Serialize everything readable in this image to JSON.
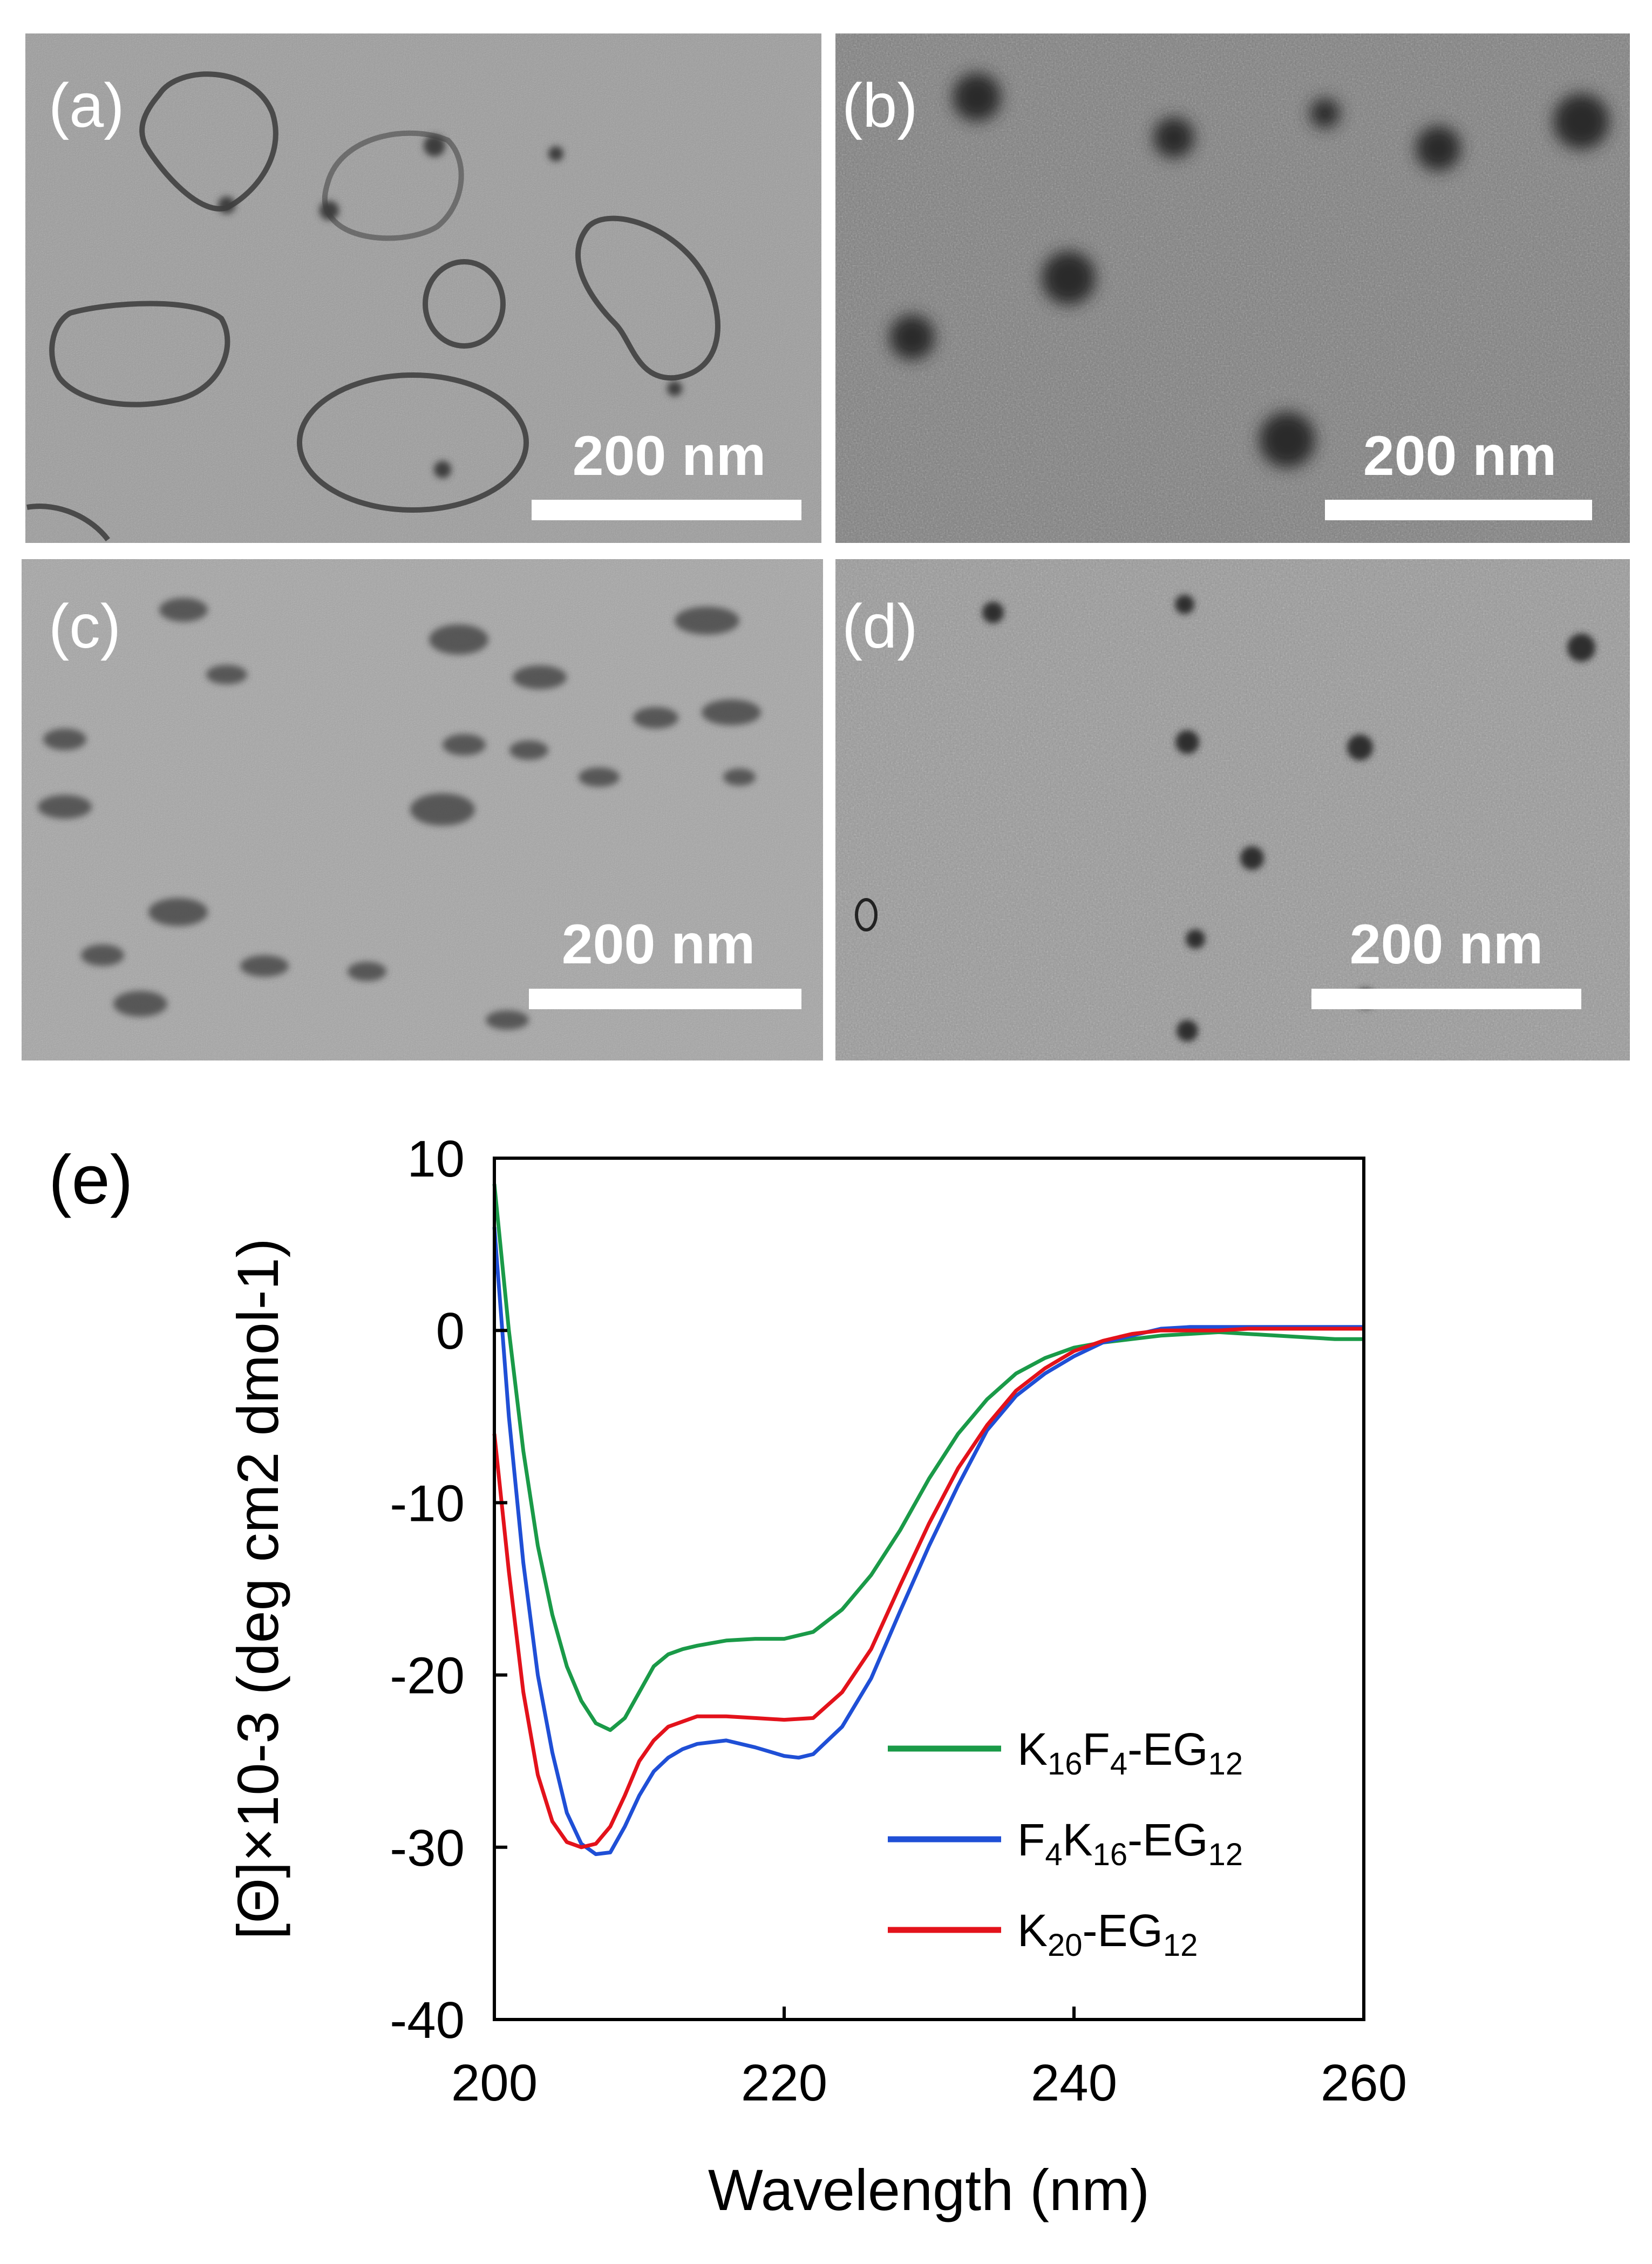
{
  "tem_panels": [
    {
      "label": "(a)",
      "scale_bar": "200 nm"
    },
    {
      "label": "(b)",
      "scale_bar": "200 nm"
    },
    {
      "label": "(c)",
      "scale_bar": "200 nm"
    },
    {
      "label": "(d)",
      "scale_bar": "200 nm"
    }
  ],
  "cd_panel_label": "(e)",
  "chart_data": {
    "type": "line",
    "xlabel": "Wavelength (nm)",
    "ylabel": "[Θ]×10-3 (deg cm2 dmol-1)",
    "xlim": [
      200,
      260
    ],
    "ylim": [
      -40,
      10
    ],
    "xticks": [
      "200",
      "220",
      "240",
      "260"
    ],
    "yticks": [
      "10",
      "0",
      "-10",
      "-20",
      "-30",
      "-40"
    ],
    "legend_position": "right",
    "series": [
      {
        "name": "K16F4-EG12",
        "color": "#1a9a48",
        "x": [
          200,
          201,
          202,
          203,
          204,
          205,
          206,
          207,
          208,
          209,
          210,
          211,
          212,
          213,
          214,
          216,
          218,
          220,
          222,
          224,
          226,
          228,
          230,
          232,
          234,
          236,
          238,
          240,
          242,
          244,
          246,
          248,
          250,
          252,
          254,
          256,
          258,
          260
        ],
        "y": [
          8.5,
          0,
          -7,
          -12.5,
          -16.5,
          -19.5,
          -21.5,
          -22.8,
          -23.2,
          -22.5,
          -21,
          -19.5,
          -18.8,
          -18.5,
          -18.3,
          -18,
          -17.9,
          -17.9,
          -17.5,
          -16.2,
          -14.2,
          -11.6,
          -8.6,
          -6,
          -4,
          -2.5,
          -1.6,
          -1,
          -0.7,
          -0.5,
          -0.3,
          -0.2,
          -0.1,
          -0.2,
          -0.3,
          -0.4,
          -0.5,
          -0.5
        ]
      },
      {
        "name": "F4K16-EG12",
        "color": "#1f4fd6",
        "x": [
          200,
          201,
          202,
          203,
          204,
          205,
          206,
          207,
          208,
          209,
          210,
          211,
          212,
          213,
          214,
          216,
          218,
          220,
          221,
          222,
          224,
          226,
          228,
          230,
          232,
          234,
          236,
          238,
          240,
          242,
          244,
          246,
          248,
          250,
          252,
          254,
          256,
          258,
          260
        ],
        "y": [
          6,
          -5,
          -13.5,
          -20,
          -24.5,
          -28,
          -29.8,
          -30.4,
          -30.3,
          -28.8,
          -27,
          -25.6,
          -24.8,
          -24.3,
          -24,
          -23.8,
          -24.2,
          -24.7,
          -24.8,
          -24.6,
          -23,
          -20.2,
          -16.3,
          -12.5,
          -9,
          -5.8,
          -3.8,
          -2.5,
          -1.5,
          -0.7,
          -0.3,
          0.1,
          0.2,
          0.2,
          0.2,
          0.2,
          0.2,
          0.2,
          0.2
        ]
      },
      {
        "name": "K20-EG12",
        "color": "#e3121b",
        "x": [
          200,
          201,
          202,
          203,
          204,
          205,
          206,
          207,
          208,
          209,
          210,
          211,
          212,
          213,
          214,
          216,
          218,
          220,
          222,
          224,
          226,
          228,
          230,
          232,
          234,
          236,
          238,
          240,
          242,
          244,
          246,
          248,
          250,
          252,
          254,
          256,
          258,
          260
        ],
        "y": [
          -6,
          -14,
          -21,
          -25.8,
          -28.5,
          -29.7,
          -30,
          -29.8,
          -28.8,
          -27,
          -25,
          -23.8,
          -23,
          -22.7,
          -22.4,
          -22.4,
          -22.5,
          -22.6,
          -22.5,
          -21,
          -18.5,
          -14.8,
          -11.2,
          -8,
          -5.5,
          -3.5,
          -2.2,
          -1.2,
          -0.6,
          -0.2,
          0,
          0,
          0,
          0.1,
          0.1,
          0.1,
          0.1,
          0.1
        ]
      }
    ]
  }
}
